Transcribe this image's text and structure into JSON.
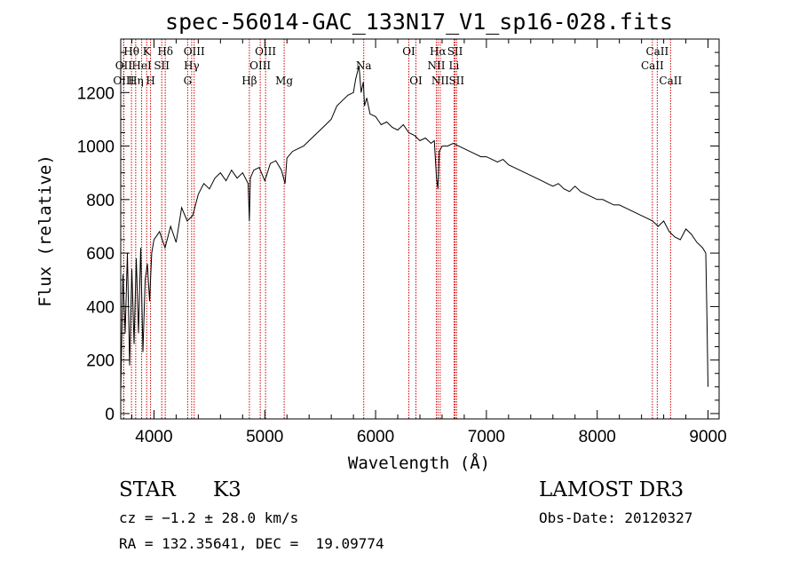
{
  "chart_data": {
    "type": "line",
    "title": "spec-56014-GAC_133N17_V1_sp16-028.fits",
    "xlabel": "Wavelength (Å)",
    "ylabel": "Flux (relative)",
    "xlim": [
      3700,
      9100
    ],
    "ylim": [
      -20,
      1400
    ],
    "x_ticks": [
      4000,
      5000,
      6000,
      7000,
      8000,
      9000
    ],
    "y_ticks": [
      0,
      200,
      400,
      600,
      800,
      1000,
      1200
    ],
    "grid": false,
    "line_color": "#000000",
    "marker_color": "#cc0000",
    "series": [
      {
        "x": [
          3700,
          3720,
          3740,
          3760,
          3780,
          3800,
          3820,
          3840,
          3860,
          3880,
          3900,
          3920,
          3940,
          3960,
          3980,
          4000,
          4050,
          4100,
          4150,
          4200,
          4250,
          4300,
          4350,
          4400,
          4450,
          4500,
          4550,
          4600,
          4650,
          4700,
          4750,
          4800,
          4850,
          4861,
          4870,
          4900,
          4950,
          5000,
          5050,
          5100,
          5150,
          5183,
          5200,
          5250,
          5300,
          5350,
          5400,
          5450,
          5500,
          5550,
          5600,
          5650,
          5700,
          5750,
          5800,
          5820,
          5850,
          5870,
          5890,
          5900,
          5920,
          5950,
          6000,
          6050,
          6100,
          6150,
          6200,
          6250,
          6300,
          6350,
          6400,
          6450,
          6500,
          6530,
          6550,
          6563,
          6575,
          6600,
          6650,
          6700,
          6750,
          6800,
          6850,
          6900,
          6950,
          7000,
          7050,
          7100,
          7150,
          7200,
          7250,
          7300,
          7350,
          7400,
          7450,
          7500,
          7550,
          7600,
          7650,
          7700,
          7750,
          7800,
          7850,
          7900,
          7950,
          8000,
          8050,
          8100,
          8150,
          8200,
          8250,
          8300,
          8350,
          8400,
          8450,
          8500,
          8550,
          8600,
          8650,
          8700,
          8750,
          8800,
          8850,
          8900,
          8950,
          8980,
          8990,
          9000
        ],
        "y": [
          80,
          520,
          300,
          600,
          180,
          540,
          260,
          580,
          300,
          620,
          230,
          500,
          560,
          420,
          600,
          650,
          680,
          620,
          700,
          640,
          770,
          720,
          740,
          820,
          860,
          840,
          880,
          900,
          870,
          910,
          880,
          900,
          860,
          720,
          880,
          910,
          920,
          870,
          935,
          945,
          910,
          860,
          955,
          980,
          990,
          1000,
          1020,
          1040,
          1060,
          1080,
          1100,
          1150,
          1170,
          1190,
          1200,
          1250,
          1300,
          1200,
          1240,
          1150,
          1180,
          1120,
          1110,
          1080,
          1090,
          1070,
          1060,
          1080,
          1050,
          1040,
          1020,
          1030,
          1010,
          1020,
          880,
          840,
          980,
          1000,
          1000,
          1010,
          1000,
          990,
          980,
          970,
          960,
          960,
          950,
          940,
          950,
          930,
          920,
          910,
          900,
          890,
          880,
          870,
          860,
          850,
          860,
          840,
          830,
          850,
          830,
          820,
          810,
          800,
          800,
          790,
          780,
          780,
          770,
          760,
          750,
          740,
          730,
          720,
          700,
          720,
          680,
          660,
          650,
          690,
          670,
          640,
          620,
          600,
          360,
          100
        ]
      }
    ],
    "spectral_lines": [
      {
        "label": "Hθ",
        "wavelength": 3797,
        "row": 1
      },
      {
        "label": "OII",
        "wavelength": 3727,
        "row": 2
      },
      {
        "label": "OIII",
        "wavelength": 3727,
        "row": 3
      },
      {
        "label": "K",
        "wavelength": 3934,
        "row": 1
      },
      {
        "label": "HeI",
        "wavelength": 3889,
        "row": 2
      },
      {
        "label": "Hη",
        "wavelength": 3835,
        "row": 3
      },
      {
        "label": "Hδ",
        "wavelength": 4102,
        "row": 1
      },
      {
        "label": "SII",
        "wavelength": 4070,
        "row": 2
      },
      {
        "label": "H",
        "wavelength": 3969,
        "row": 3
      },
      {
        "label": "OIII",
        "wavelength": 4363,
        "row": 1
      },
      {
        "label": "Hγ",
        "wavelength": 4340,
        "row": 2
      },
      {
        "label": "G",
        "wavelength": 4304,
        "row": 3
      },
      {
        "label": "OIII",
        "wavelength": 5007,
        "row": 1
      },
      {
        "label": "OIII",
        "wavelength": 4959,
        "row": 2
      },
      {
        "label": "Hβ",
        "wavelength": 4861,
        "row": 3
      },
      {
        "label": "Mg",
        "wavelength": 5175,
        "row": 3
      },
      {
        "label": "Na",
        "wavelength": 5893,
        "row": 2
      },
      {
        "label": "OI",
        "wavelength": 6300,
        "row": 1
      },
      {
        "label": "OI",
        "wavelength": 6364,
        "row": 3
      },
      {
        "label": "Hα",
        "wavelength": 6563,
        "row": 1
      },
      {
        "label": "SII",
        "wavelength": 6717,
        "row": 1
      },
      {
        "label": "NII",
        "wavelength": 6548,
        "row": 2
      },
      {
        "label": "Li",
        "wavelength": 6708,
        "row": 2
      },
      {
        "label": "NII",
        "wavelength": 6583,
        "row": 3
      },
      {
        "label": "SII",
        "wavelength": 6731,
        "row": 3
      },
      {
        "label": "CaII",
        "wavelength": 8542,
        "row": 1
      },
      {
        "label": "CaII",
        "wavelength": 8498,
        "row": 2
      },
      {
        "label": "CaII",
        "wavelength": 8662,
        "row": 3
      }
    ]
  },
  "info": {
    "object_class": "STAR",
    "subclass": "K3",
    "survey": "LAMOST DR3",
    "redshift_line": "cz = −1.2 ± 28.0 km/s",
    "obs_date": "Obs-Date: 20120327",
    "coords": "RA = 132.35641, DEC =  19.09774"
  }
}
